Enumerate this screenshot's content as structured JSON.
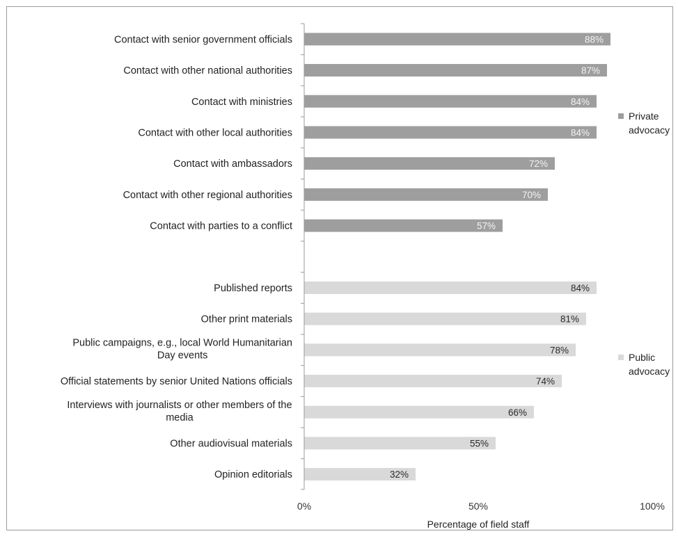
{
  "chart_data": {
    "type": "bar",
    "orientation": "horizontal",
    "xlabel": "Percentage of field staff",
    "xlim": [
      0,
      100
    ],
    "x_ticks": [
      "0%",
      "50%",
      "100%"
    ],
    "grid": false,
    "legend_position": "right",
    "series": [
      {
        "name": "Private advocacy",
        "legend_lines": [
          "Private",
          "advocacy"
        ],
        "color": "#9e9e9e",
        "value_label_color": "#f4f4f4",
        "categories": [
          [
            "Contact with senior government officials"
          ],
          [
            "Contact with other national authorities"
          ],
          [
            "Contact with ministries"
          ],
          [
            "Contact with other local authorities"
          ],
          [
            "Contact with ambassadors"
          ],
          [
            "Contact with other regional authorities"
          ],
          [
            "Contact with parties to a conflict"
          ]
        ],
        "values": [
          88,
          87,
          84,
          84,
          72,
          70,
          57
        ],
        "value_labels": [
          "88%",
          "87%",
          "84%",
          "84%",
          "72%",
          "70%",
          "57%"
        ]
      },
      {
        "name": "Public advocacy",
        "legend_lines": [
          "Public",
          "advocacy"
        ],
        "color": "#d9d9d9",
        "value_label_color": "#2a2a2a",
        "categories": [
          [
            "Published reports"
          ],
          [
            "Other print materials"
          ],
          [
            "Public campaigns, e.g., local World Humanitarian",
            "Day events"
          ],
          [
            "Official statements by senior United Nations officials"
          ],
          [
            "Interviews with journalists or other members of the",
            "media"
          ],
          [
            "Other audiovisual materials"
          ],
          [
            "Opinion editorials"
          ]
        ],
        "values": [
          84,
          81,
          78,
          74,
          66,
          55,
          32
        ],
        "value_labels": [
          "84%",
          "81%",
          "78%",
          "74%",
          "66%",
          "55%",
          "32%"
        ]
      }
    ]
  }
}
